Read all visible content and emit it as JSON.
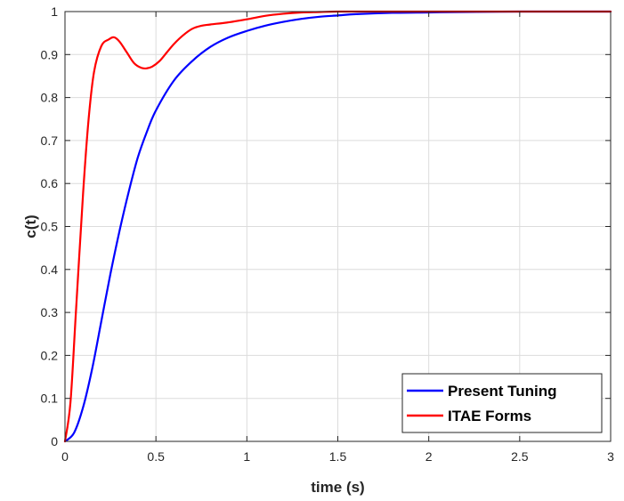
{
  "colors": {
    "background": "#ffffff",
    "grid": "#dcdcdc",
    "axis": "#262626",
    "present_tuning": "#0000ff",
    "itae_forms": "#ff0000"
  },
  "chart_data": {
    "type": "line",
    "title": "",
    "xlabel": "time (s)",
    "ylabel": "c(t)",
    "xlim": [
      0,
      3
    ],
    "ylim": [
      0,
      1
    ],
    "grid": true,
    "legend_position": "bottom-right",
    "x_ticks": [
      0,
      0.5,
      1,
      1.5,
      2,
      2.5,
      3
    ],
    "x_tick_labels": [
      "0",
      "0.5",
      "1",
      "1.5",
      "2",
      "2.5",
      "3"
    ],
    "y_ticks": [
      0,
      0.1,
      0.2,
      0.3,
      0.4,
      0.5,
      0.6,
      0.7,
      0.8,
      0.9,
      1
    ],
    "y_tick_labels": [
      "0",
      "0.1",
      "0.2",
      "0.3",
      "0.4",
      "0.5",
      "0.6",
      "0.7",
      "0.8",
      "0.9",
      "1"
    ],
    "series": [
      {
        "name": "Present Tuning",
        "color": "#0000ff",
        "x": [
          0,
          0.05,
          0.1,
          0.15,
          0.2,
          0.25,
          0.3,
          0.35,
          0.4,
          0.45,
          0.5,
          0.6,
          0.7,
          0.8,
          0.9,
          1.0,
          1.1,
          1.2,
          1.3,
          1.4,
          1.5,
          1.6,
          1.8,
          2.0,
          2.2,
          2.5,
          2.8,
          3.0
        ],
        "y": [
          0,
          0.02,
          0.08,
          0.17,
          0.28,
          0.39,
          0.49,
          0.58,
          0.66,
          0.72,
          0.77,
          0.84,
          0.885,
          0.918,
          0.94,
          0.955,
          0.967,
          0.976,
          0.983,
          0.988,
          0.991,
          0.994,
          0.997,
          0.998,
          0.999,
          1.0,
          1.0,
          1.0
        ]
      },
      {
        "name": "ITAE Forms",
        "color": "#ff0000",
        "x": [
          0,
          0.03,
          0.06,
          0.1,
          0.13,
          0.16,
          0.2,
          0.24,
          0.27,
          0.3,
          0.34,
          0.38,
          0.42,
          0.45,
          0.48,
          0.52,
          0.56,
          0.6,
          0.65,
          0.7,
          0.75,
          0.8,
          0.9,
          1.0,
          1.1,
          1.2,
          1.3,
          1.4,
          1.5,
          1.7,
          2.0,
          2.5,
          3.0
        ],
        "y": [
          0,
          0.09,
          0.3,
          0.58,
          0.75,
          0.86,
          0.92,
          0.935,
          0.94,
          0.93,
          0.905,
          0.88,
          0.869,
          0.868,
          0.872,
          0.885,
          0.905,
          0.925,
          0.945,
          0.96,
          0.967,
          0.97,
          0.975,
          0.982,
          0.99,
          0.995,
          0.998,
          0.999,
          1.0,
          1.0,
          1.0,
          1.0,
          1.0
        ]
      }
    ]
  }
}
